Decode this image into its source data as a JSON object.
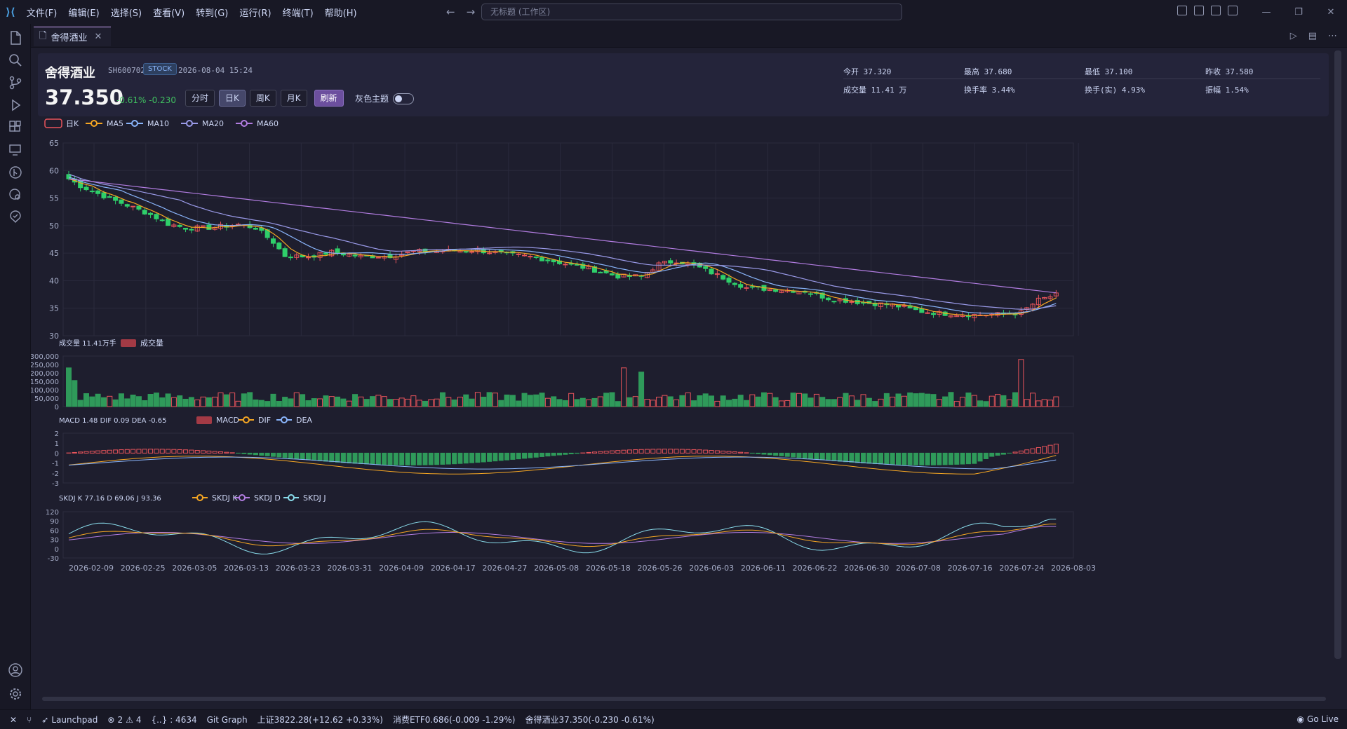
{
  "menu": [
    "文件(F)",
    "编辑(E)",
    "选择(S)",
    "查看(V)",
    "转到(G)",
    "运行(R)",
    "终端(T)",
    "帮助(H)"
  ],
  "command_center": {
    "placeholder": "无标题 (工作区)"
  },
  "tab": {
    "label": "舍得酒业"
  },
  "stock": {
    "name": "舍得酒业",
    "code": "SH600702",
    "badge": "STOCK",
    "time": "2026-08-04 15:24",
    "price": "37.350",
    "change": "-0.61% -0.230",
    "buttons": [
      "分时",
      "日K",
      "周K",
      "月K"
    ],
    "active": "日K",
    "refresh": "刷新",
    "gray_theme": "灰色主题",
    "stats": {
      "open": "今开 37.320",
      "high": "最高 37.680",
      "low": "最低 37.100",
      "prev": "昨收 37.580",
      "volume": "成交量 11.41 万",
      "turnover": "换手率 3.44%",
      "turnover_real": "换手(实) 4.93%",
      "amplitude": "振幅 1.54%"
    }
  },
  "chart_data": [
    {
      "type": "candlestick",
      "legend": [
        "日K",
        "MA5",
        "MA10",
        "MA20",
        "MA60"
      ],
      "colors": {
        "up": "#e8545b",
        "down": "#2fcf6a",
        "ma5": "#f5a623",
        "ma10": "#89b4fa",
        "ma20": "#9a9ae8",
        "ma60": "#b17ce0"
      },
      "ylim": [
        30,
        65
      ],
      "yticks": [
        30,
        35,
        40,
        45,
        50,
        55,
        60,
        65
      ],
      "x_dates": [
        "2026-02-09",
        "2026-02-25",
        "2026-03-05",
        "2026-03-13",
        "2026-03-23",
        "2026-03-31",
        "2026-04-09",
        "2026-04-17",
        "2026-04-27",
        "2026-05-08",
        "2026-05-18",
        "2026-05-26",
        "2026-06-03",
        "2026-06-11",
        "2026-06-22",
        "2026-06-30",
        "2026-07-08",
        "2026-07-16",
        "2026-07-24",
        "2026-08-03"
      ],
      "close_path": [
        [
          0,
          58.5
        ],
        [
          2,
          57.2
        ],
        [
          5,
          55.8
        ],
        [
          8,
          54.5
        ],
        [
          11,
          53.3
        ],
        [
          14,
          52.0
        ],
        [
          17,
          50.3
        ],
        [
          20,
          49.6
        ],
        [
          24,
          49.6
        ],
        [
          29,
          50.2
        ],
        [
          32,
          49.6
        ],
        [
          35,
          47.0
        ],
        [
          37,
          44.5
        ],
        [
          41,
          44.4
        ],
        [
          45,
          45.2
        ],
        [
          50,
          44.4
        ],
        [
          55,
          44.5
        ],
        [
          59,
          45.3
        ],
        [
          63,
          45.4
        ],
        [
          70,
          45.5
        ],
        [
          75,
          44.8
        ],
        [
          80,
          44.2
        ],
        [
          84,
          43.3
        ],
        [
          89,
          42.2
        ],
        [
          94,
          40.8
        ],
        [
          98,
          40.8
        ],
        [
          101,
          43.0
        ],
        [
          104,
          43.6
        ],
        [
          107,
          42.8
        ],
        [
          111,
          41.0
        ],
        [
          116,
          38.7
        ],
        [
          121,
          38.4
        ],
        [
          126,
          38.1
        ],
        [
          130,
          36.8
        ],
        [
          136,
          36.0
        ],
        [
          141,
          35.6
        ],
        [
          146,
          34.4
        ],
        [
          150,
          34.0
        ],
        [
          155,
          33.8
        ],
        [
          160,
          33.9
        ],
        [
          163,
          34.2
        ],
        [
          166,
          36.5
        ],
        [
          169,
          37.4
        ]
      ],
      "title": "",
      "xlabel": "",
      "ylabel": ""
    },
    {
      "type": "bar",
      "title": "成交量 11.41万手",
      "legend": [
        "成交量"
      ],
      "ylim": [
        0,
        300000
      ],
      "yticks": [
        "300,000",
        "250,000",
        "200,000",
        "150,000",
        "100,000",
        "50,000",
        "0"
      ],
      "spikes": [
        {
          "i": 0,
          "v": 230000
        },
        {
          "i": 1,
          "v": 155000
        },
        {
          "i": 95,
          "v": 230000
        },
        {
          "i": 98,
          "v": 205000
        },
        {
          "i": 163,
          "v": 280000
        }
      ]
    },
    {
      "type": "bar+line",
      "title": "MACD 1.48  DIF 0.09  DEA -0.65",
      "legend": [
        "MACD",
        "DIF",
        "DEA"
      ],
      "ylim": [
        -3,
        2
      ],
      "yticks": [
        2,
        1,
        0,
        -1,
        -2,
        -3
      ]
    },
    {
      "type": "line",
      "title": "SKDJ K 77.16  D 69.06  J 93.36",
      "legend": [
        "SKDJ K",
        "SKDJ D",
        "SKDJ J"
      ],
      "ylim": [
        -30,
        120
      ],
      "yticks": [
        120,
        90,
        60,
        30,
        0,
        -30
      ]
    }
  ],
  "status": {
    "launchpad": "Launchpad",
    "problems": "2",
    "warnings": "4",
    "braces": "{..} : 4634",
    "gitgraph": "Git Graph",
    "ticker1": "上证3822.28(+12.62 +0.33%)",
    "ticker2": "消费ETF0.686(-0.009 -1.29%)",
    "ticker3": "舍得酒业37.350(-0.230 -0.61%)",
    "golive": "Go Live"
  }
}
